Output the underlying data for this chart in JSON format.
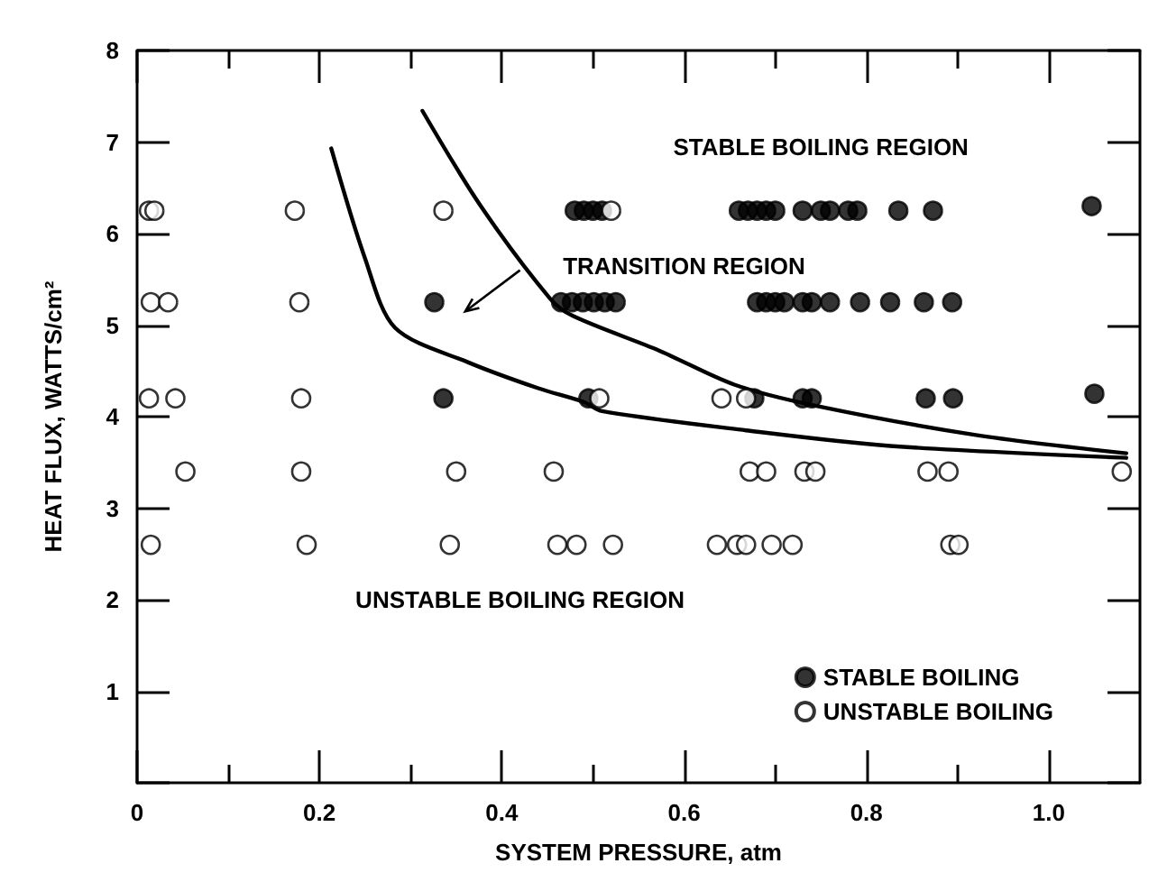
{
  "chart_data": {
    "type": "scatter",
    "xlabel": "SYSTEM PRESSURE, atm",
    "ylabel": "HEAT FLUX, WATTS/cm²",
    "xlim": [
      0,
      1.1
    ],
    "ylim": [
      0,
      8
    ],
    "xticks": [
      0,
      {
        "value": 0.1,
        "label": null
      },
      0.2,
      {
        "value": 0.3,
        "label": null
      },
      0.4,
      {
        "value": 0.5,
        "label": null
      },
      0.6,
      {
        "value": 0.7,
        "label": null
      },
      0.8,
      {
        "value": 0.9,
        "label": null
      },
      {
        "value": 1,
        "label": "1.0"
      }
    ],
    "yticks": [
      {
        "value": 0,
        "label": null
      },
      1,
      2,
      3,
      4,
      5,
      6,
      7,
      8
    ],
    "grid": false,
    "legend": "bottom right",
    "marker": "circle",
    "annotations": [
      "STABLE BOILING REGION",
      "TRANSITION REGION",
      "UNSTABLE BOILING REGION"
    ],
    "series": [
      {
        "name": "STABLE BOILING",
        "color": "#000000",
        "x": [
          0.48,
          0.49,
          0.5,
          0.51,
          0.66,
          0.67,
          0.68,
          0.69,
          0.7,
          0.73,
          0.75,
          0.76,
          0.78,
          0.79,
          0.835,
          0.873,
          1.047,
          0.326,
          0.465,
          0.477,
          0.489,
          0.501,
          0.513,
          0.525,
          0.68,
          0.69,
          0.7,
          0.71,
          0.73,
          0.74,
          0.76,
          0.793,
          0.826,
          0.863,
          0.894,
          0.336,
          0.495,
          0.677,
          0.73,
          0.74,
          0.865,
          0.895,
          1.05
        ],
        "values": [
          6.25,
          6.25,
          6.25,
          6.25,
          6.25,
          6.25,
          6.25,
          6.25,
          6.25,
          6.25,
          6.25,
          6.25,
          6.25,
          6.25,
          6.25,
          6.25,
          6.3,
          5.25,
          5.25,
          5.25,
          5.25,
          5.25,
          5.25,
          5.25,
          5.25,
          5.25,
          5.25,
          5.25,
          5.25,
          5.25,
          5.25,
          5.25,
          5.25,
          5.25,
          5.25,
          4.2,
          4.2,
          4.2,
          4.2,
          4.2,
          4.2,
          4.2,
          4.25
        ]
      },
      {
        "name": "UNSTABLE BOILING",
        "color": "#ffffff",
        "x": [
          0.013,
          0.019,
          0.173,
          0.336,
          0.52,
          0.015,
          0.034,
          0.178,
          0.013,
          0.042,
          0.18,
          0.507,
          0.641,
          0.668,
          0.053,
          0.18,
          0.35,
          0.457,
          0.672,
          0.69,
          0.732,
          0.744,
          0.867,
          0.89,
          1.08,
          0.015,
          0.186,
          0.343,
          0.461,
          0.482,
          0.522,
          0.636,
          0.658,
          0.668,
          0.696,
          0.719,
          0.892,
          0.901
        ],
        "values": [
          6.25,
          6.25,
          6.25,
          6.25,
          6.25,
          5.25,
          5.25,
          5.25,
          4.2,
          4.2,
          4.2,
          4.2,
          4.2,
          4.2,
          3.4,
          3.4,
          3.4,
          3.4,
          3.4,
          3.4,
          3.4,
          3.4,
          3.4,
          3.4,
          3.4,
          2.6,
          2.6,
          2.6,
          2.6,
          2.6,
          2.6,
          2.6,
          2.6,
          2.6,
          2.6,
          2.6,
          2.6,
          2.6
        ]
      },
      {
        "type": "line",
        "color": "#000000",
        "marker": "none",
        "x": [
          0.213,
          0.25,
          0.283,
          0.364,
          0.44,
          0.49,
          0.51,
          0.668,
          0.826,
          1.085
        ],
        "values": [
          6.93,
          5.73,
          4.97,
          4.59,
          4.31,
          4.16,
          4.06,
          3.85,
          3.68,
          3.55
        ]
      },
      {
        "type": "line",
        "color": "#000000",
        "marker": "none",
        "x": [
          0.313,
          0.377,
          0.453,
          0.478,
          0.573,
          0.655,
          0.744,
          0.92,
          1.085
        ],
        "values": [
          7.34,
          6.3,
          5.29,
          5.1,
          4.72,
          4.35,
          4.12,
          3.8,
          3.6
        ]
      }
    ]
  }
}
